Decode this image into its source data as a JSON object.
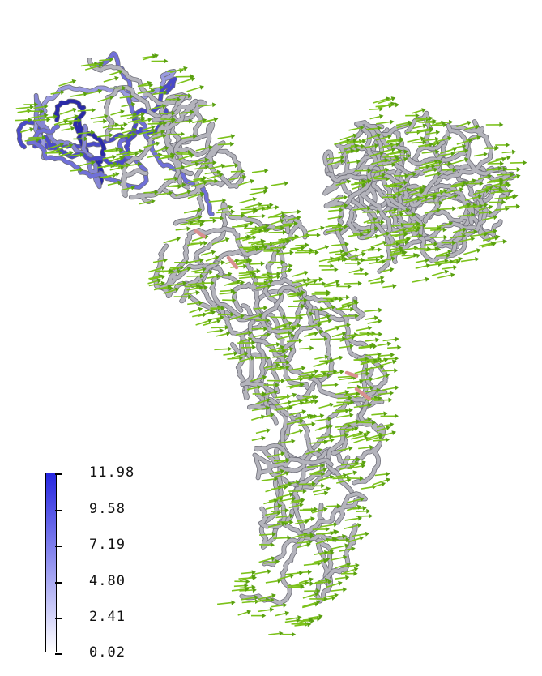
{
  "colorbar": {
    "tick_labels": [
      "11.98",
      "9.58",
      "7.19",
      "4.80",
      "2.41",
      "0.02"
    ],
    "max_value": 11.98,
    "min_value": 0.02,
    "color_max": "#2626e0",
    "color_min": "#ffffff"
  },
  "structure": {
    "tube_color": "#b4b4bc",
    "tube_dark": "#4a4a55",
    "highlight_color": "#6a6ae0",
    "accent_color": "#d89090",
    "arrow_color": "#7cc21a"
  }
}
